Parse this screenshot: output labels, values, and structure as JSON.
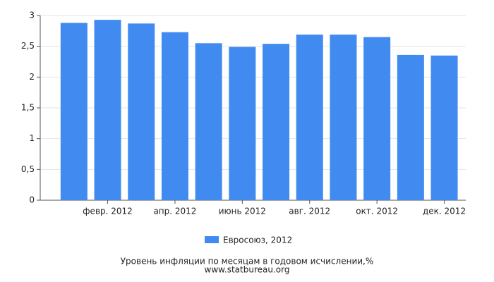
{
  "chart_data": {
    "type": "bar",
    "title": "Уровень инфляции по месяцам в годовом исчислении,%",
    "subtitle": "www.statbureau.org",
    "categories": [
      null,
      "февр. 2012",
      null,
      "апр. 2012",
      null,
      "июнь 2012",
      null,
      "авг. 2012",
      null,
      "окт. 2012",
      null,
      "дек. 2012"
    ],
    "series": [
      {
        "name": "Евросоюз, 2012",
        "color": "#418bf0",
        "values": [
          2.88,
          2.93,
          2.87,
          2.73,
          2.55,
          2.49,
          2.54,
          2.69,
          2.69,
          2.65,
          2.36,
          2.35
        ]
      }
    ],
    "ylim": [
      0,
      3
    ],
    "yticks": [
      0,
      {
        "value": 0.5,
        "label": "0,5"
      },
      1,
      {
        "value": 1.5,
        "label": "1,5"
      },
      2,
      {
        "value": 2.5,
        "label": "2,5"
      },
      3
    ],
    "grid": true,
    "legend": "bottom"
  }
}
